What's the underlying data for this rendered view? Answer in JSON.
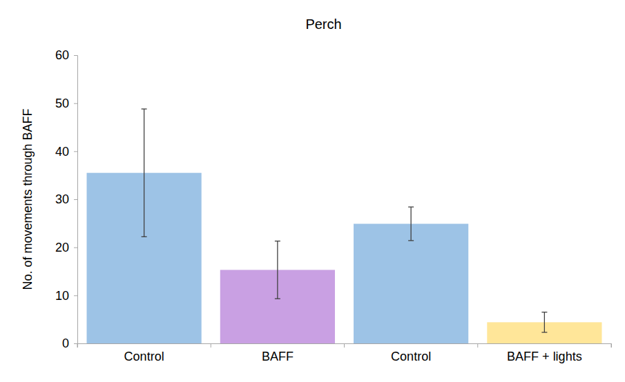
{
  "chart_data": {
    "type": "bar",
    "title": "Perch",
    "y_label": "No. of movements through BAFF",
    "categories": [
      "Control",
      "BAFF",
      "Control",
      "BAFF + lights"
    ],
    "values": [
      35.5,
      15.3,
      24.9,
      4.4
    ],
    "errors": [
      13.3,
      6.0,
      3.5,
      2.1
    ],
    "colors": [
      "#9dc3e6",
      "#c9a0e3",
      "#9dc3e6",
      "#ffe699"
    ],
    "ylim": [
      0,
      60
    ],
    "yticks": [
      0,
      10,
      20,
      30,
      40,
      50,
      60
    ],
    "grid": false
  }
}
